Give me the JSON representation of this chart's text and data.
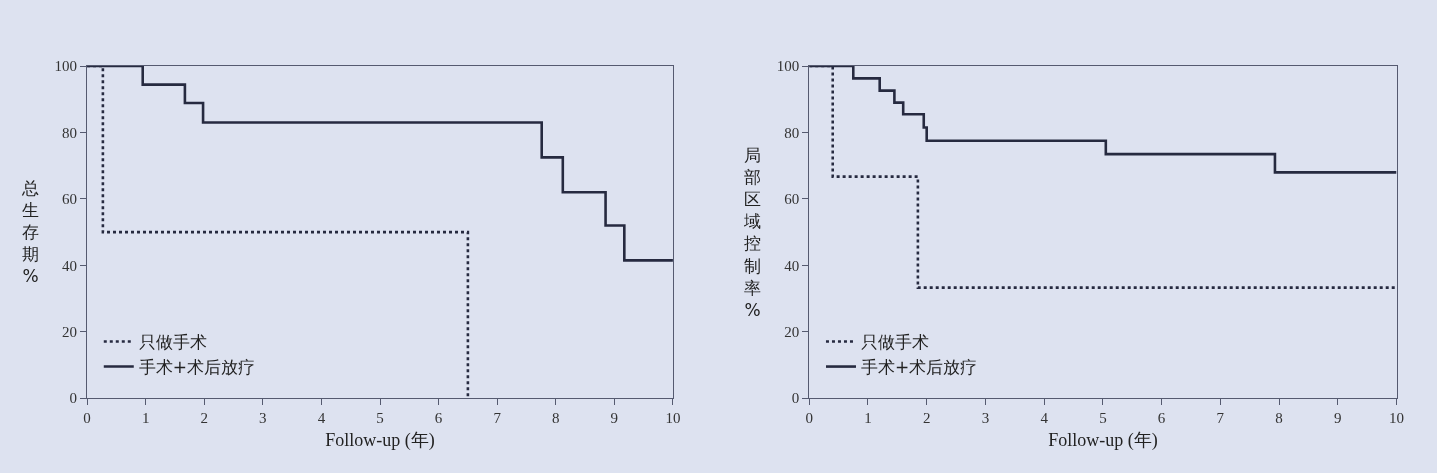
{
  "chart_data": [
    {
      "type": "step",
      "xlabel": "Follow-up (年)",
      "ylabel": "总生存期 %",
      "xlim": [
        0,
        10
      ],
      "xticks": [
        0,
        1,
        2,
        3,
        4,
        5,
        6,
        7,
        8,
        9,
        10
      ],
      "ylim": [
        0,
        100
      ],
      "yticks": [
        0,
        20,
        40,
        60,
        80,
        100
      ],
      "grid": false,
      "legend": "bottom left",
      "marker": "none",
      "series": [
        {
          "name": "只做手术",
          "color": "#262a40",
          "line_style": "dotted",
          "x": [
            0,
            0.27,
            6.5
          ],
          "values": [
            100,
            50,
            0
          ]
        },
        {
          "name": "手术+术后放疗",
          "color": "#262a40",
          "line_style": "solid",
          "x": [
            0,
            0.95,
            1.67,
            1.98,
            7.76,
            8.12,
            8.85,
            9.17,
            10
          ],
          "values": [
            100,
            94.4,
            88.9,
            83,
            72.5,
            62,
            52,
            41.5,
            41.5
          ]
        }
      ]
    },
    {
      "type": "step",
      "xlabel": "Follow-up (年)",
      "ylabel": "局部区域控制率 %",
      "xlim": [
        0,
        10
      ],
      "xticks": [
        0,
        1,
        2,
        3,
        4,
        5,
        6,
        7,
        8,
        9,
        10
      ],
      "ylim": [
        0,
        100
      ],
      "yticks": [
        0,
        20,
        40,
        60,
        80,
        100
      ],
      "grid": false,
      "legend": "bottom left",
      "marker": "none",
      "series": [
        {
          "name": "只做手术",
          "color": "#262a40",
          "line_style": "dotted",
          "x": [
            0,
            0.4,
            1.85,
            10
          ],
          "values": [
            100,
            66.7,
            33.3,
            33.3
          ]
        },
        {
          "name": "手术+术后放疗",
          "color": "#262a40",
          "line_style": "solid",
          "x": [
            0,
            0.75,
            1.2,
            1.45,
            1.6,
            1.95,
            2.0,
            5.05,
            7.93,
            10
          ],
          "values": [
            100,
            96.3,
            92.6,
            89,
            85.5,
            81.5,
            77.5,
            73.5,
            68,
            68
          ]
        }
      ]
    }
  ]
}
